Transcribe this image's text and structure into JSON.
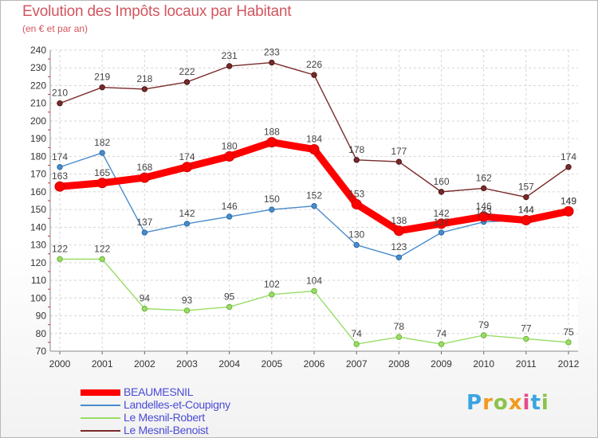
{
  "title": "Evolution des Impôts locaux par Habitant",
  "subtitle": "(en € et par an)",
  "brand": {
    "text": "Proxiti",
    "letters": [
      "P",
      "r",
      "o",
      "x",
      "i",
      "t",
      "i"
    ],
    "colors": [
      "#3aa4e0",
      "#f29a1d",
      "#8bc34a",
      "#f29a1d",
      "#e64a8c",
      "#3aa4e0",
      "#8bc34a"
    ]
  },
  "chart_data": {
    "type": "line",
    "title": "Evolution des Impôts locaux par Habitant",
    "subtitle": "(en € et par an)",
    "xlabel": "",
    "ylabel": "",
    "ylim": [
      70,
      240
    ],
    "yticks": [
      70,
      80,
      90,
      100,
      110,
      120,
      130,
      140,
      150,
      160,
      170,
      180,
      190,
      200,
      210,
      220,
      230,
      240
    ],
    "grid": true,
    "legend_position": "bottom-left",
    "x": [
      "2000",
      "2001",
      "2002",
      "2003",
      "2004",
      "2005",
      "2006",
      "2007",
      "2008",
      "2009",
      "2010",
      "2011",
      "2012"
    ],
    "series": [
      {
        "name": "BEAUMESNIL",
        "color": "#ff0000",
        "values": [
          163,
          165,
          168,
          174,
          180,
          188,
          184,
          153,
          138,
          142,
          146,
          144,
          149
        ]
      },
      {
        "name": "Landelles-et-Coupigny",
        "color": "#4a8cca",
        "values": [
          174,
          182,
          137,
          142,
          146,
          150,
          152,
          130,
          123,
          137,
          143,
          144,
          149
        ]
      },
      {
        "name": "Le Mesnil-Robert",
        "color": "#99dd66",
        "values": [
          122,
          122,
          94,
          93,
          95,
          102,
          104,
          74,
          78,
          74,
          79,
          77,
          75
        ]
      },
      {
        "name": "Le Mesnil-Benoist",
        "color": "#7a2a2a",
        "values": [
          210,
          219,
          218,
          222,
          231,
          233,
          226,
          178,
          177,
          160,
          162,
          157,
          174
        ]
      }
    ]
  }
}
